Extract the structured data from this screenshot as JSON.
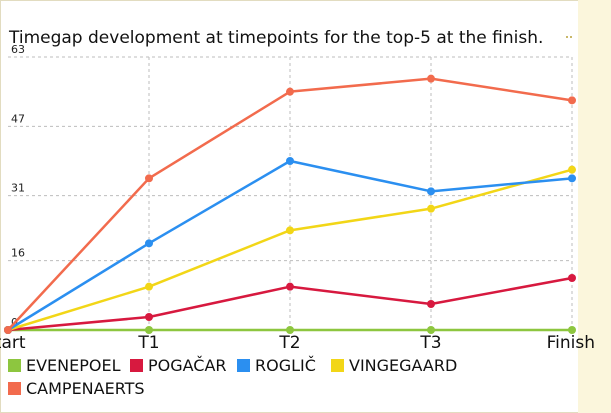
{
  "chart_data": {
    "type": "line",
    "title": "Timegap development at timepoints for the top-5 at the finish.",
    "categories": [
      "Start",
      "T1",
      "T2",
      "T3",
      "Finish"
    ],
    "ylim": [
      0,
      63
    ],
    "yticks": [
      0,
      16,
      31,
      47,
      63
    ],
    "grid": true,
    "legend_position": "bottom-left",
    "series": [
      {
        "name": "EVENEPOEL",
        "color": "#8dc63f",
        "values": [
          0,
          0,
          0,
          0,
          0
        ]
      },
      {
        "name": "POGAČAR",
        "color": "#d7193f",
        "values": [
          0,
          3,
          10,
          6,
          12
        ]
      },
      {
        "name": "ROGLIČ",
        "color": "#2b8ff0",
        "values": [
          0,
          20,
          39,
          32,
          35
        ]
      },
      {
        "name": "VINGEGAARD",
        "color": "#f2d617",
        "values": [
          0,
          10,
          23,
          28,
          37
        ]
      },
      {
        "name": "CAMPENAERTS",
        "color": "#f26b4d",
        "values": [
          0,
          35,
          55,
          58,
          53
        ]
      }
    ]
  }
}
